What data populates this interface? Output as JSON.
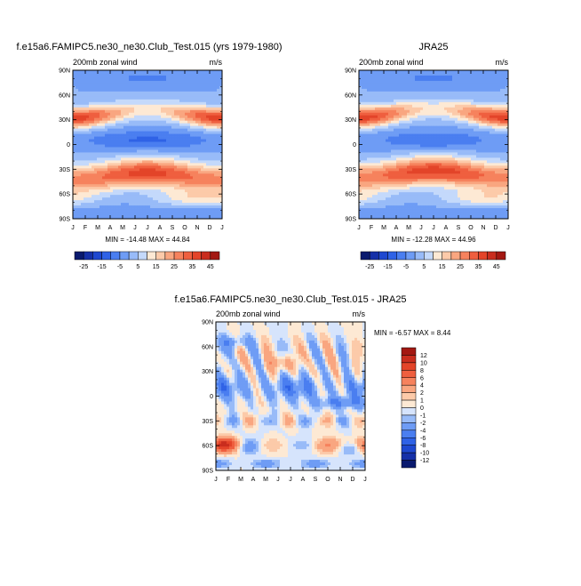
{
  "chart_data": [
    {
      "type": "heatmap",
      "id": "model",
      "title": "f.e15a6.FAMIPC5.ne30_ne30.Club_Test.015 (yrs 1979-1980)",
      "subtitle_left": "200mb zonal wind",
      "subtitle_right": "m/s",
      "x_ticks": [
        "J",
        "F",
        "M",
        "A",
        "M",
        "J",
        "J",
        "A",
        "S",
        "O",
        "N",
        "D",
        "J"
      ],
      "y_ticks": [
        "90N",
        "60N",
        "30N",
        "0",
        "30S",
        "60S",
        "90S"
      ],
      "y_values": [
        90,
        60,
        30,
        0,
        -30,
        -60,
        -90
      ],
      "stats": "MIN = -14.48 MAX =  44.84",
      "field": {
        "nh_jet_amp": 38,
        "nh_jet_lat": 32,
        "sh_jet_amp": 37,
        "sh_jet_lat": -42,
        "trop_amp": -11,
        "noise": 0
      },
      "colorbar": {
        "labels": [
          "-25",
          "-15",
          "-5",
          "5",
          "15",
          "25",
          "35",
          "45"
        ],
        "levels": [
          -30,
          -25,
          -20,
          -15,
          -10,
          -5,
          0,
          5,
          10,
          15,
          20,
          25,
          30,
          35,
          40,
          45,
          50
        ],
        "colors": [
          "#0a1a6e",
          "#1530a8",
          "#1e48d0",
          "#2f62e6",
          "#4a7ef0",
          "#6e9cf5",
          "#98bbf8",
          "#c4d9fb",
          "#fde9d4",
          "#fccaa9",
          "#f9a680",
          "#f6825d",
          "#ef5f3f",
          "#e34429",
          "#c92d1e",
          "#a31812"
        ]
      }
    },
    {
      "type": "heatmap",
      "id": "obs",
      "title": "JRA25",
      "subtitle_left": "200mb zonal wind",
      "subtitle_right": "m/s",
      "x_ticks": [
        "J",
        "F",
        "M",
        "A",
        "M",
        "J",
        "J",
        "A",
        "S",
        "O",
        "N",
        "D",
        "J"
      ],
      "y_ticks": [
        "90N",
        "60N",
        "30N",
        "0",
        "30S",
        "60S",
        "90S"
      ],
      "y_values": [
        90,
        60,
        30,
        0,
        -30,
        -60,
        -90
      ],
      "stats": "MIN = -12.28 MAX =  44.96",
      "field": {
        "nh_jet_amp": 39,
        "nh_jet_lat": 33,
        "sh_jet_amp": 38,
        "sh_jet_lat": -40,
        "trop_amp": -9,
        "noise": 0
      },
      "colorbar": {
        "labels": [
          "-25",
          "-15",
          "-5",
          "5",
          "15",
          "25",
          "35",
          "45"
        ],
        "levels": [
          -30,
          -25,
          -20,
          -15,
          -10,
          -5,
          0,
          5,
          10,
          15,
          20,
          25,
          30,
          35,
          40,
          45,
          50
        ],
        "colors": [
          "#0a1a6e",
          "#1530a8",
          "#1e48d0",
          "#2f62e6",
          "#4a7ef0",
          "#6e9cf5",
          "#98bbf8",
          "#c4d9fb",
          "#fde9d4",
          "#fccaa9",
          "#f9a680",
          "#f6825d",
          "#ef5f3f",
          "#e34429",
          "#c92d1e",
          "#a31812"
        ]
      }
    },
    {
      "type": "heatmap",
      "id": "diff",
      "title": "f.e15a6.FAMIPC5.ne30_ne30.Club_Test.015 - JRA25",
      "subtitle_left": "200mb zonal wind",
      "subtitle_right": "m/s",
      "x_ticks": [
        "J",
        "F",
        "M",
        "A",
        "M",
        "J",
        "J",
        "A",
        "S",
        "O",
        "N",
        "D",
        "J"
      ],
      "y_ticks": [
        "90N",
        "60N",
        "30N",
        "0",
        "30S",
        "60S",
        "90S"
      ],
      "y_values": [
        90,
        60,
        30,
        0,
        -30,
        -60,
        -90
      ],
      "stats": "MIN =  -6.57 MAX =   8.44",
      "field": {
        "noise": 1
      },
      "colorbar": {
        "labels": [
          "12",
          "10",
          "8",
          "6",
          "4",
          "2",
          "1",
          "0",
          "-1",
          "-2",
          "-4",
          "-6",
          "-8",
          "-10",
          "-12"
        ],
        "levels": [
          -14,
          -12,
          -10,
          -8,
          -6,
          -4,
          -2,
          -1,
          0,
          1,
          2,
          4,
          6,
          8,
          10,
          12,
          14
        ],
        "colors": [
          "#0a1a6e",
          "#1530a8",
          "#1e48d0",
          "#2f62e6",
          "#4a7ef0",
          "#6e9cf5",
          "#98bbf8",
          "#d6e4fc",
          "#fde9d4",
          "#fccaa9",
          "#f9a680",
          "#f6825d",
          "#ef5f3f",
          "#e34429",
          "#c92d1e",
          "#a31812"
        ]
      }
    }
  ]
}
